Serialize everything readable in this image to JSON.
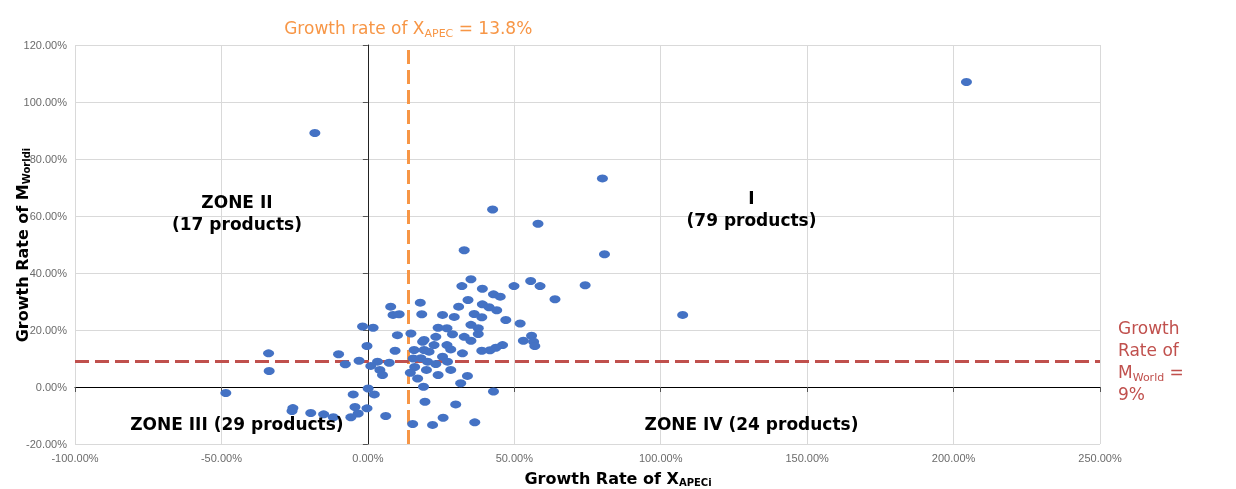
{
  "chart_data": {
    "type": "scatter",
    "xlabel": "Growth Rate of X$_{APECi}$",
    "ylabel": "Growth Rate of M$_{Worldi}$",
    "xlim": [
      -100,
      250
    ],
    "xticks": [
      {
        "value": -100,
        "label": "-100.00%"
      },
      {
        "value": -50,
        "label": "-50.00%"
      },
      {
        "value": 0,
        "label": "0.00%"
      },
      {
        "value": 50,
        "label": "50.00%"
      },
      {
        "value": 100,
        "label": "100.00%"
      },
      {
        "value": 150,
        "label": "150.00%"
      },
      {
        "value": 200,
        "label": "200.00%"
      },
      {
        "value": 250,
        "label": "250.00%"
      }
    ],
    "ylim": [
      -20,
      120
    ],
    "yticks": [
      {
        "value": -20,
        "label": "-20.00%"
      },
      {
        "value": 0,
        "label": "0.00%"
      },
      {
        "value": 20,
        "label": "20.00%"
      },
      {
        "value": 40,
        "label": "40.00%"
      },
      {
        "value": 60,
        "label": "60.00%"
      },
      {
        "value": 80,
        "label": "80.00%"
      },
      {
        "value": 100,
        "label": "100.00%"
      },
      {
        "value": 120,
        "label": "120.00%"
      }
    ],
    "grid": true,
    "marker": "circle",
    "series": [
      {
        "color": "#4472c4",
        "x": [
          80.1,
          42.6,
          58.1,
          32.9,
          80.8,
          35.2,
          32.1,
          39.1,
          49.9,
          55.6,
          58.8,
          74.2,
          63.9,
          42.9,
          45.2,
          34.2,
          31.0,
          39.1,
          41.4,
          44.0,
          17.9,
          18.4,
          25.5,
          29.5,
          36.3,
          38.9,
          47.1,
          52.0,
          35.2,
          37.7,
          24.0,
          27.0,
          14.7,
          28.9,
          37.7,
          23.2,
          32.9,
          35.2,
          55.9,
          53.1,
          56.6,
          57.0,
          19.2,
          46.0,
          43.7,
          41.7,
          38.9,
          22.6,
          27.0,
          28.3,
          20.9,
          32.3,
          25.5,
          27.2,
          18.1,
          20.4,
          23.2,
          28.3,
          24.0,
          34.0,
          18.7,
          15.8,
          19.2,
          15.5,
          16.0,
          14.5,
          17.0,
          20.0,
          204.4,
          107.5,
          42.9,
          19.5,
          30.0,
          25.7,
          22.1,
          36.5,
          15.3,
          31.7,
          19.0,
          -33.9,
          -33.7,
          -10.0,
          -7.7,
          -3.0,
          -1.8,
          1.8,
          -0.3,
          7.8,
          8.6,
          10.7,
          9.3,
          3.3,
          7.3,
          1.0,
          4.1,
          5.0,
          10.1,
          0.1,
          -5.0,
          2.2,
          -0.3,
          -25.9,
          -15.1,
          -11.8,
          -3.3,
          6.1,
          -5.8,
          -48.5,
          -25.6,
          -19.5,
          -4.4,
          -18.1
        ],
        "values": [
          73.2,
          62.3,
          57.3,
          48.0,
          46.6,
          37.8,
          35.4,
          34.5,
          35.4,
          37.2,
          35.4,
          35.7,
          30.8,
          32.5,
          31.7,
          30.5,
          28.2,
          29.0,
          28.0,
          26.9,
          29.6,
          25.5,
          25.3,
          24.6,
          25.6,
          24.5,
          23.5,
          22.3,
          21.8,
          20.6,
          20.8,
          20.6,
          18.8,
          18.5,
          18.6,
          17.6,
          17.6,
          16.2,
          18.0,
          16.2,
          15.9,
          14.4,
          16.5,
          14.7,
          13.8,
          12.9,
          12.7,
          14.7,
          14.7,
          13.2,
          12.4,
          11.8,
          10.6,
          8.9,
          10.1,
          8.9,
          8.1,
          6.0,
          4.2,
          3.9,
          15.9,
          13.0,
          13.0,
          10.0,
          7.0,
          5.0,
          3.0,
          6.0,
          107.0,
          25.3,
          -1.6,
          -5.2,
          -6.1,
          -10.8,
          -13.3,
          -12.4,
          -13.0,
          1.3,
          0.1,
          11.8,
          5.6,
          11.5,
          8.0,
          9.2,
          21.2,
          20.8,
          14.4,
          28.2,
          25.3,
          25.5,
          12.7,
          8.9,
          8.5,
          7.4,
          6.0,
          4.2,
          18.2,
          -0.5,
          -2.6,
          -2.6,
          -7.5,
          -8.4,
          -9.6,
          -10.6,
          -9.3,
          -10.2,
          -10.6,
          -2.1,
          -7.4,
          -9.1,
          -7.0,
          89.1
        ]
      }
    ],
    "ref_lines": [
      {
        "axis": "x",
        "value": 13.8,
        "label": "Growth rate of X$_{APEC}$ = 13.8%",
        "color": "#f79646",
        "line_style": "dashed"
      },
      {
        "axis": "y",
        "value": 9,
        "label": "Growth Rate of M$_{World}$ = 9%",
        "color": "#c0504d",
        "line_style": "dashed"
      }
    ],
    "annotations": [
      "ZONE II\n(17 products)",
      "I\n(79 products)",
      "ZONE III (29 products)",
      "ZONE IV (24 products)"
    ]
  }
}
